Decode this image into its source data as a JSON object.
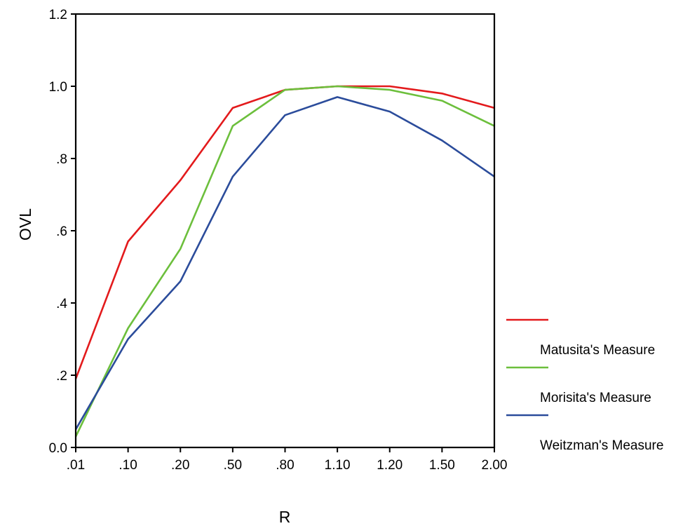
{
  "chart_data": {
    "type": "line",
    "title": "",
    "xlabel": "R",
    "ylabel": "OVL",
    "categories": [
      ".01",
      ".10",
      ".20",
      ".50",
      ".80",
      "1.10",
      "1.20",
      "1.50",
      "2.00"
    ],
    "ylim": [
      0.0,
      1.2
    ],
    "y_ticks": [
      {
        "value": 0.0,
        "label": "0.0"
      },
      {
        "value": 0.2,
        "label": ".2"
      },
      {
        "value": 0.4,
        "label": ".4"
      },
      {
        "value": 0.6,
        "label": ".6"
      },
      {
        "value": 0.8,
        "label": ".8"
      },
      {
        "value": 1.0,
        "label": "1.0"
      },
      {
        "value": 1.2,
        "label": "1.2"
      }
    ],
    "grid": false,
    "legend_position": "right",
    "series": [
      {
        "name": "Matusita's Measure",
        "color": "#e31a1c",
        "values": [
          0.19,
          0.57,
          0.74,
          0.94,
          0.99,
          1.0,
          1.0,
          0.98,
          0.94
        ]
      },
      {
        "name": "Morisita's Measure",
        "color": "#6cbf3c",
        "values": [
          0.03,
          0.33,
          0.55,
          0.89,
          0.99,
          1.0,
          0.99,
          0.96,
          0.89
        ]
      },
      {
        "name": "Weitzman's Measure",
        "color": "#2b4c9b",
        "values": [
          0.05,
          0.3,
          0.46,
          0.75,
          0.92,
          0.97,
          0.93,
          0.85,
          0.75
        ]
      }
    ]
  }
}
